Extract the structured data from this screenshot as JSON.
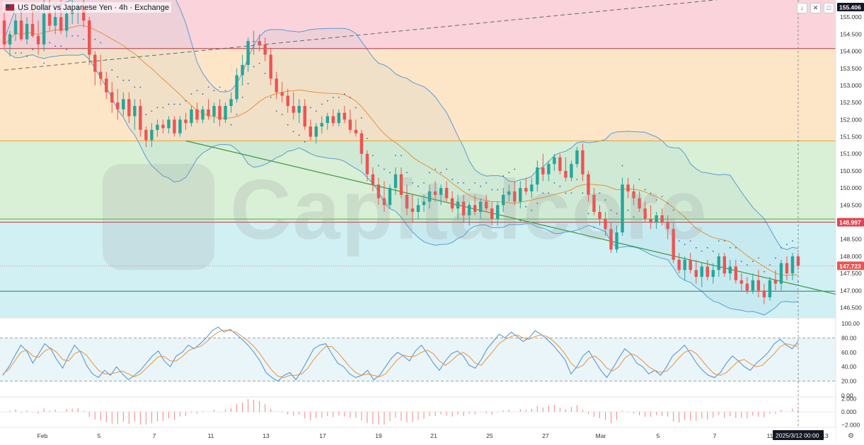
{
  "header": {
    "title": "US Dollar vs Japanese Yen · 4h · Exchange",
    "icons": [
      "arrow-down-icon",
      "collapse-icon",
      "screenshot-icon"
    ]
  },
  "watermark": "Capitalcore",
  "colors": {
    "up": "#26a69a",
    "down": "#ef5350",
    "bb": "#5b9bd5",
    "ma": "#e8923a",
    "sar": "#2a6aa8",
    "zone_pink": "#fad4da",
    "zone_orange": "#fde6c8",
    "zone_green": "#d9efd6",
    "zone_cyan": "#d0f0f3"
  },
  "price_axis": {
    "ticks": [
      "155.000",
      "154.500",
      "154.000",
      "153.500",
      "153.000",
      "152.500",
      "152.000",
      "151.500",
      "151.000",
      "150.500",
      "150.000",
      "149.500",
      "149.000",
      "148.500",
      "148.000",
      "147.500",
      "147.000",
      "146.500"
    ],
    "badges": {
      "top": "155.406",
      "resistance": "148.997",
      "last": "147.723"
    }
  },
  "stoch_axis": {
    "ticks": [
      "100.00",
      "80.00",
      "60.00",
      "40.00",
      "20.00",
      "0.00"
    ]
  },
  "macd_axis": {
    "ticks": [
      "2.000",
      "0.000",
      "−2.000"
    ]
  },
  "time_axis": {
    "ticks": [
      "Feb",
      "5",
      "7",
      "11",
      "13",
      "17",
      "19",
      "21",
      "25",
      "27",
      "Mar",
      "5",
      "7",
      "11",
      "13"
    ],
    "cursor_label": "2025/3/12",
    "cursor_time": "00:00"
  },
  "chart_data": {
    "type": "candlestick",
    "symbol": "USD/JPY",
    "timeframe": "4h",
    "ylim": [
      146.2,
      155.5
    ],
    "levels": [
      {
        "name": "zone-top",
        "value": 154.08
      },
      {
        "name": "zone-mid",
        "value": 151.38
      },
      {
        "name": "green-line",
        "value": 149.09
      },
      {
        "name": "resistance",
        "value": 148.997
      },
      {
        "name": "support",
        "value": 146.98
      }
    ],
    "trendlines": [
      {
        "name": "dashed-resistance",
        "from": [
          0,
          153.45
        ],
        "to": [
          165,
          156.15
        ]
      },
      {
        "name": "green-support",
        "from": [
          32,
          151.38
        ],
        "to": [
          163,
          146.25
        ]
      }
    ],
    "ohlc": [
      [
        154.9,
        155.3,
        154.1,
        154.2
      ],
      [
        154.2,
        154.6,
        153.85,
        154.5
      ],
      [
        154.5,
        155.1,
        154.3,
        154.9
      ],
      [
        154.9,
        155.2,
        154.3,
        154.35
      ],
      [
        154.35,
        155.0,
        154.2,
        154.8
      ],
      [
        154.8,
        155.4,
        154.4,
        154.45
      ],
      [
        154.45,
        154.9,
        153.9,
        154.2
      ],
      [
        154.2,
        155.5,
        154.0,
        155.1
      ],
      [
        155.1,
        155.5,
        154.6,
        154.75
      ],
      [
        154.75,
        155.3,
        154.5,
        155.0
      ],
      [
        155.0,
        155.5,
        154.5,
        154.6
      ],
      [
        154.6,
        155.3,
        154.4,
        155.1
      ],
      [
        155.1,
        155.5,
        154.8,
        155.2
      ],
      [
        155.2,
        155.4,
        154.8,
        155.3
      ],
      [
        155.3,
        155.6,
        154.7,
        154.9
      ],
      [
        154.9,
        155.0,
        153.6,
        153.9
      ],
      [
        153.9,
        154.0,
        153.0,
        153.4
      ],
      [
        153.4,
        153.9,
        153.0,
        153.2
      ],
      [
        153.2,
        153.4,
        152.6,
        152.8
      ],
      [
        152.8,
        153.1,
        152.2,
        152.5
      ],
      [
        152.5,
        152.9,
        152.0,
        152.3
      ],
      [
        152.3,
        152.8,
        152.1,
        152.6
      ],
      [
        152.6,
        152.8,
        151.9,
        152.1
      ],
      [
        152.1,
        152.6,
        151.7,
        152.4
      ],
      [
        152.4,
        152.6,
        151.5,
        151.7
      ],
      [
        151.7,
        151.8,
        151.2,
        151.4
      ],
      [
        151.4,
        151.9,
        151.2,
        151.7
      ],
      [
        151.7,
        152.0,
        151.5,
        151.85
      ],
      [
        151.85,
        152.0,
        151.6,
        151.75
      ],
      [
        151.75,
        152.1,
        151.6,
        152.0
      ],
      [
        152.0,
        152.1,
        151.5,
        151.6
      ],
      [
        151.6,
        152.1,
        151.5,
        152.0
      ],
      [
        152.0,
        152.2,
        151.7,
        151.9
      ],
      [
        151.9,
        152.4,
        151.8,
        152.3
      ],
      [
        152.3,
        152.5,
        151.9,
        152.0
      ],
      [
        152.0,
        152.4,
        151.9,
        152.3
      ],
      [
        152.3,
        152.6,
        152.0,
        152.1
      ],
      [
        152.1,
        152.5,
        151.9,
        152.4
      ],
      [
        152.4,
        152.6,
        151.8,
        152.0
      ],
      [
        152.0,
        152.5,
        151.9,
        152.4
      ],
      [
        152.4,
        152.8,
        152.2,
        152.6
      ],
      [
        152.6,
        153.5,
        152.5,
        153.3
      ],
      [
        153.3,
        153.9,
        153.0,
        153.6
      ],
      [
        153.6,
        154.4,
        153.4,
        154.3
      ],
      [
        154.3,
        154.6,
        153.9,
        154.3
      ],
      [
        154.3,
        154.5,
        154.0,
        154.2
      ],
      [
        154.2,
        154.4,
        153.7,
        153.9
      ],
      [
        153.9,
        154.1,
        153.0,
        153.2
      ],
      [
        153.2,
        153.4,
        152.6,
        152.8
      ],
      [
        152.8,
        153.1,
        152.5,
        152.7
      ],
      [
        152.7,
        152.9,
        152.2,
        152.4
      ],
      [
        152.4,
        152.8,
        152.0,
        152.2
      ],
      [
        152.2,
        152.6,
        151.9,
        152.4
      ],
      [
        152.4,
        152.6,
        151.7,
        151.8
      ],
      [
        151.8,
        152.0,
        151.4,
        151.5
      ],
      [
        151.5,
        151.9,
        151.3,
        151.8
      ],
      [
        151.8,
        152.1,
        151.6,
        151.9
      ],
      [
        151.9,
        152.2,
        151.7,
        152.1
      ],
      [
        152.1,
        152.3,
        151.8,
        151.9
      ],
      [
        151.9,
        152.3,
        151.8,
        152.2
      ],
      [
        152.2,
        152.4,
        151.9,
        152.0
      ],
      [
        152.0,
        152.3,
        151.6,
        151.7
      ],
      [
        151.7,
        152.0,
        151.5,
        151.6
      ],
      [
        151.6,
        151.7,
        150.7,
        151.0
      ],
      [
        151.0,
        151.1,
        150.2,
        150.4
      ],
      [
        150.4,
        150.6,
        149.9,
        150.1
      ],
      [
        150.1,
        150.3,
        149.5,
        149.7
      ],
      [
        149.7,
        150.2,
        149.3,
        149.5
      ],
      [
        149.5,
        150.1,
        149.4,
        150.0
      ],
      [
        150.0,
        150.6,
        149.8,
        150.4
      ],
      [
        150.4,
        150.6,
        149.7,
        149.8
      ],
      [
        149.8,
        150.1,
        149.2,
        149.4
      ],
      [
        149.4,
        149.8,
        149.0,
        149.3
      ],
      [
        149.3,
        149.7,
        149.1,
        149.5
      ],
      [
        149.5,
        149.8,
        149.3,
        149.6
      ],
      [
        149.6,
        150.1,
        149.4,
        149.9
      ],
      [
        149.9,
        150.2,
        149.6,
        149.8
      ],
      [
        149.8,
        150.1,
        149.5,
        150.0
      ],
      [
        150.0,
        150.2,
        149.6,
        149.7
      ],
      [
        149.7,
        149.9,
        149.3,
        149.4
      ],
      [
        149.4,
        149.8,
        149.1,
        149.6
      ],
      [
        149.6,
        149.8,
        149.0,
        149.2
      ],
      [
        149.2,
        149.6,
        148.9,
        149.5
      ],
      [
        149.5,
        149.8,
        149.2,
        149.3
      ],
      [
        149.3,
        149.7,
        149.1,
        149.6
      ],
      [
        149.6,
        149.8,
        149.3,
        149.4
      ],
      [
        149.4,
        149.6,
        148.9,
        149.1
      ],
      [
        149.1,
        149.6,
        148.9,
        149.5
      ],
      [
        149.5,
        150.0,
        149.3,
        149.8
      ],
      [
        149.8,
        150.1,
        149.6,
        149.9
      ],
      [
        149.9,
        150.2,
        149.5,
        149.6
      ],
      [
        149.6,
        150.2,
        149.4,
        150.0
      ],
      [
        150.0,
        150.3,
        149.8,
        149.9
      ],
      [
        149.9,
        150.3,
        149.7,
        150.1
      ],
      [
        150.1,
        150.8,
        149.9,
        150.6
      ],
      [
        150.6,
        151.0,
        150.2,
        150.4
      ],
      [
        150.4,
        150.8,
        150.2,
        150.7
      ],
      [
        150.7,
        151.0,
        150.5,
        150.9
      ],
      [
        150.9,
        151.0,
        150.4,
        150.5
      ],
      [
        150.5,
        150.9,
        150.2,
        150.3
      ],
      [
        150.3,
        150.8,
        150.2,
        150.7
      ],
      [
        150.7,
        151.2,
        150.6,
        151.1
      ],
      [
        151.1,
        151.3,
        150.2,
        150.4
      ],
      [
        150.4,
        150.5,
        149.6,
        149.8
      ],
      [
        149.8,
        150.0,
        149.2,
        149.3
      ],
      [
        149.3,
        149.5,
        148.9,
        149.1
      ],
      [
        149.1,
        149.3,
        148.6,
        148.8
      ],
      [
        148.8,
        149.0,
        148.1,
        148.2
      ],
      [
        148.2,
        148.9,
        148.1,
        148.7
      ],
      [
        148.7,
        150.3,
        148.6,
        150.1
      ],
      [
        150.1,
        150.3,
        149.7,
        149.9
      ],
      [
        149.9,
        150.1,
        149.5,
        149.7
      ],
      [
        149.7,
        149.9,
        149.3,
        149.4
      ],
      [
        149.4,
        149.6,
        149.0,
        149.1
      ],
      [
        149.1,
        149.5,
        148.8,
        149.0
      ],
      [
        149.0,
        149.3,
        148.8,
        149.2
      ],
      [
        149.2,
        149.4,
        148.9,
        149.0
      ],
      [
        149.0,
        149.2,
        148.5,
        148.8
      ],
      [
        148.8,
        149.0,
        147.8,
        147.9
      ],
      [
        147.9,
        148.1,
        147.5,
        147.6
      ],
      [
        147.6,
        148.0,
        147.3,
        147.9
      ],
      [
        147.9,
        148.1,
        147.5,
        147.6
      ],
      [
        147.6,
        147.9,
        147.2,
        147.4
      ],
      [
        147.4,
        147.8,
        147.1,
        147.7
      ],
      [
        147.7,
        147.9,
        147.3,
        147.4
      ],
      [
        147.4,
        147.8,
        147.2,
        147.6
      ],
      [
        147.6,
        148.1,
        147.4,
        148.0
      ],
      [
        148.0,
        148.1,
        147.4,
        147.5
      ],
      [
        147.5,
        147.9,
        147.3,
        147.7
      ],
      [
        147.7,
        147.9,
        147.2,
        147.3
      ],
      [
        147.3,
        147.5,
        147.0,
        147.2
      ],
      [
        147.2,
        147.4,
        146.9,
        147.0
      ],
      [
        147.0,
        147.5,
        146.9,
        147.3
      ],
      [
        147.3,
        147.6,
        146.8,
        147.0
      ],
      [
        147.0,
        147.2,
        146.6,
        146.8
      ],
      [
        146.8,
        147.4,
        146.7,
        147.3
      ],
      [
        147.3,
        147.6,
        147.0,
        147.2
      ],
      [
        147.2,
        147.9,
        147.0,
        147.8
      ],
      [
        147.8,
        148.0,
        147.3,
        147.5
      ],
      [
        147.5,
        148.1,
        147.3,
        148.0
      ],
      [
        148.0,
        148.1,
        147.6,
        147.723
      ]
    ],
    "stoch_k": [
      28,
      40,
      55,
      70,
      62,
      45,
      58,
      72,
      65,
      50,
      38,
      55,
      70,
      60,
      42,
      30,
      25,
      35,
      28,
      40,
      30,
      22,
      28,
      35,
      45,
      55,
      62,
      48,
      40,
      55,
      60,
      70,
      65,
      72,
      80,
      90,
      95,
      88,
      92,
      85,
      78,
      70,
      60,
      48,
      32,
      25,
      20,
      28,
      32,
      22,
      35,
      50,
      65,
      70,
      72,
      58,
      45,
      40,
      30,
      25,
      28,
      35,
      22,
      28,
      40,
      52,
      60,
      55,
      48,
      62,
      70,
      58,
      45,
      35,
      48,
      58,
      62,
      55,
      42,
      38,
      50,
      65,
      75,
      85,
      80,
      88,
      82,
      75,
      80,
      90,
      85,
      78,
      70,
      60,
      50,
      30,
      40,
      55,
      62,
      48,
      35,
      25,
      38,
      52,
      65,
      58,
      45,
      40,
      30,
      35,
      28,
      40,
      55,
      62,
      70,
      58,
      45,
      35,
      28,
      25,
      32,
      45,
      55,
      48,
      40,
      35,
      45,
      52,
      60,
      72,
      78,
      70,
      65,
      75
    ],
    "stoch_d": [
      30,
      36,
      48,
      60,
      63,
      55,
      53,
      62,
      66,
      60,
      50,
      48,
      58,
      62,
      56,
      45,
      35,
      30,
      30,
      32,
      34,
      30,
      26,
      30,
      38,
      46,
      54,
      54,
      48,
      48,
      54,
      62,
      66,
      68,
      74,
      82,
      88,
      91,
      90,
      88,
      82,
      76,
      68,
      58,
      46,
      35,
      27,
      25,
      28,
      28,
      30,
      38,
      50,
      60,
      68,
      68,
      60,
      50,
      40,
      32,
      28,
      30,
      28,
      26,
      30,
      40,
      50,
      56,
      54,
      55,
      60,
      63,
      58,
      48,
      42,
      48,
      56,
      60,
      54,
      45,
      42,
      52,
      62,
      72,
      78,
      82,
      84,
      80,
      78,
      82,
      84,
      82,
      76,
      68,
      58,
      45,
      38,
      42,
      52,
      55,
      48,
      38,
      34,
      40,
      52,
      58,
      55,
      48,
      40,
      35,
      32,
      34,
      42,
      52,
      60,
      63,
      58,
      48,
      38,
      30,
      28,
      32,
      40,
      48,
      50,
      44,
      40,
      42,
      50,
      58,
      68,
      72,
      70,
      68
    ]
  }
}
